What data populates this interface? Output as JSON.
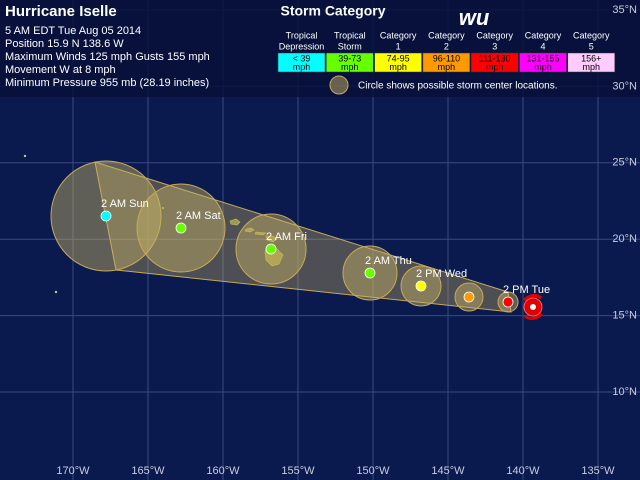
{
  "header": {
    "title": "Hurricane Iselle",
    "lines": [
      "5 AM EDT Tue Aug 05 2014",
      "Position 15.9 N 138.6 W",
      "Maximum Winds 125 mph  Gusts 155 mph",
      "Movement W at 8 mph",
      "Minimum Pressure 955 mb (28.19 inches)"
    ],
    "logo": "wu"
  },
  "legend": {
    "title": "Storm Category",
    "categories": [
      {
        "label": [
          "Tropical",
          "Depression"
        ],
        "range": "< 39",
        "unit": "mph",
        "color": "#00ffff"
      },
      {
        "label": [
          "Tropical",
          "Storm"
        ],
        "range": "39-73",
        "unit": "mph",
        "color": "#66ff00"
      },
      {
        "label": [
          "Category",
          "1"
        ],
        "range": "74-95",
        "unit": "mph",
        "color": "#ffff00"
      },
      {
        "label": [
          "Category",
          "2"
        ],
        "range": "96-110",
        "unit": "mph",
        "color": "#ff9900"
      },
      {
        "label": [
          "Category",
          "3"
        ],
        "range": "111-130",
        "unit": "mph",
        "color": "#ff0000"
      },
      {
        "label": [
          "Category",
          "4"
        ],
        "range": "131-155",
        "unit": "mph",
        "color": "#ff00ff"
      },
      {
        "label": [
          "Category",
          "5"
        ],
        "range": "156+",
        "unit": "mph",
        "color": "#ffccff"
      }
    ],
    "note": "Circle shows possible storm center locations."
  },
  "map": {
    "latitudes": [
      "35°N",
      "30°N",
      "25°N",
      "20°N",
      "15°N",
      "10°N"
    ],
    "longitudes": [
      "170°W",
      "165°W",
      "160°W",
      "155°W",
      "150°W",
      "145°W",
      "140°W",
      "135°W"
    ],
    "forecast": [
      {
        "label": "2 AM Sun",
        "color": "#00ffff"
      },
      {
        "label": "2 AM Sat",
        "color": "#66ff00"
      },
      {
        "label": "2 AM Fri",
        "color": "#66ff00"
      },
      {
        "label": "2 AM Thu",
        "color": "#66ff00"
      },
      {
        "label": "2 PM Wed",
        "color": "#ffff00"
      },
      {
        "label": null,
        "color": "#ff9900"
      },
      {
        "label": "2 PM Tue",
        "color": "#ff0000"
      }
    ]
  }
}
